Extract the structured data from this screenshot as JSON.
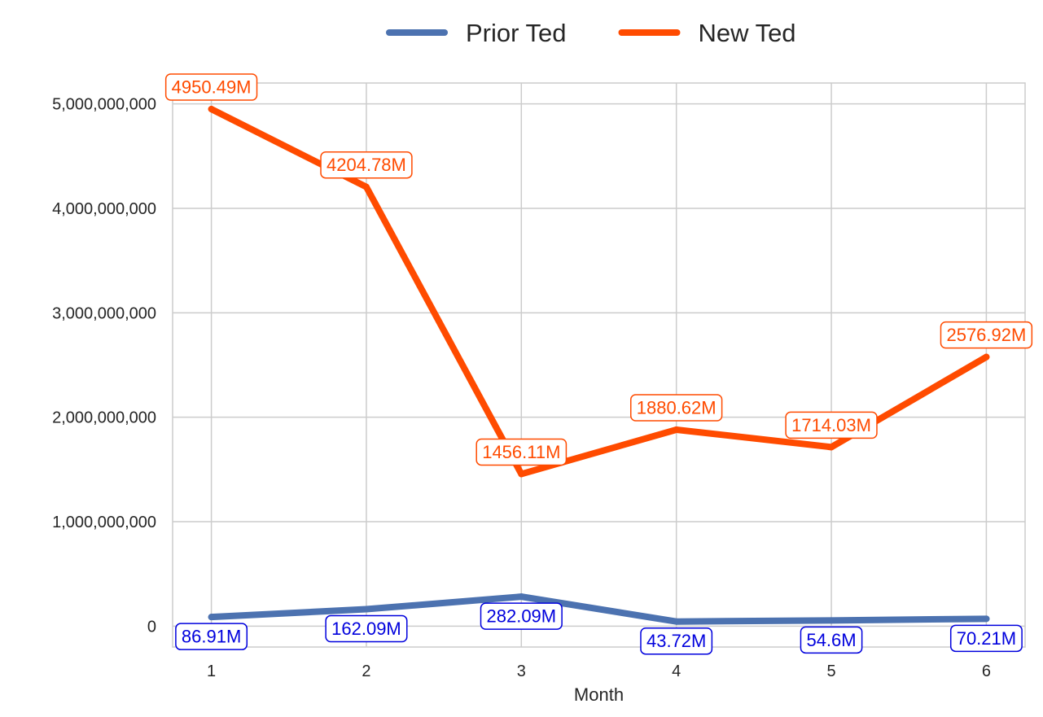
{
  "chart_data": {
    "type": "line",
    "title": "",
    "xlabel": "Month",
    "ylabel": "",
    "x": [
      1,
      2,
      3,
      4,
      5,
      6
    ],
    "xlim": [
      0.75,
      6.25
    ],
    "ylim": [
      -200000000,
      5200000000
    ],
    "yticks": [
      0,
      1000000000,
      2000000000,
      3000000000,
      4000000000,
      5000000000
    ],
    "ytick_labels": [
      "0",
      "1,000,000,000",
      "2,000,000,000",
      "3,000,000,000",
      "4,000,000,000",
      "5,000,000,000"
    ],
    "xtick_labels": [
      "1",
      "2",
      "3",
      "4",
      "5",
      "6"
    ],
    "grid": true,
    "legend_position": "top-center",
    "series": [
      {
        "name": "Prior Ted",
        "color": "#4c72b0",
        "label_color": "#0000dd",
        "values": [
          86910000,
          162090000,
          282090000,
          43720000,
          54600000,
          70210000
        ],
        "labels": [
          "86.91M",
          "162.09M",
          "282.09M",
          "43.72M",
          "54.6M",
          "70.21M"
        ],
        "label_placement": "below"
      },
      {
        "name": "New Ted",
        "color": "#ff4b00",
        "label_color": "#ff4b00",
        "values": [
          4950490000,
          4204780000,
          1456110000,
          1880620000,
          1714030000,
          2576920000
        ],
        "labels": [
          "4950.49M",
          "4204.78M",
          "1456.11M",
          "1880.62M",
          "1714.03M",
          "2576.92M"
        ],
        "label_placement": "above"
      }
    ]
  }
}
